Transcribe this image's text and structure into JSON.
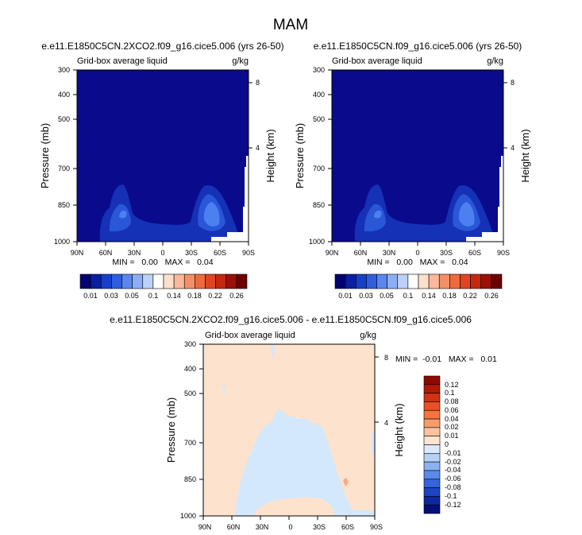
{
  "figure_title": "MAM",
  "colors": {
    "dark_navy": "#0a0a8c",
    "blue1": "#1531b5",
    "blue2": "#2a56d8",
    "blue3": "#4c7ff0",
    "pale_peach": "#fde2cd",
    "pale_blue": "#d4e8fb",
    "salmon": "#f7a98a"
  },
  "chart_data": [
    {
      "type": "heatmap",
      "title": "e.e11.E1850C5CN.2XCO2.f09_g16.cice5.006 (yrs 26-50)",
      "subtitle_left": "Grid-box average liquid",
      "subtitle_right": "g/kg",
      "ylabel": "Pressure (mb)",
      "ylabel_right": "Height (km)",
      "x_ticks": [
        "90N",
        "60N",
        "30N",
        "0",
        "30S",
        "60S",
        "90S"
      ],
      "y_ticks": [
        "300",
        "400",
        "500",
        "700",
        "850",
        "1000"
      ],
      "y_right_ticks": [
        "8",
        "4"
      ],
      "min_max_text": "MIN =   0.00   MAX =   0.04",
      "colorbar_labels": [
        "0.01",
        "0.03",
        "0.05",
        "0.1",
        "0.14",
        "0.18",
        "0.22",
        "0.26"
      ],
      "colorbar_colors": [
        "#020272",
        "#0a1fa0",
        "#1740c8",
        "#2f5ee0",
        "#5a86ee",
        "#8dadf4",
        "#bdd0f8",
        "#ffffff",
        "#fde0cc",
        "#f9b99a",
        "#f49066",
        "#ee6a3e",
        "#e04423",
        "#c42810",
        "#9c1006",
        "#6c0000"
      ]
    },
    {
      "type": "heatmap",
      "title": "e.e11.E1850C5CN.f09_g16.cice5.006 (yrs 26-50)",
      "subtitle_left": "Grid-box average liquid",
      "subtitle_right": "g/kg",
      "ylabel": "Pressure (mb)",
      "ylabel_right": "Height (km)",
      "x_ticks": [
        "90N",
        "60N",
        "30N",
        "0",
        "30S",
        "60S",
        "90S"
      ],
      "y_ticks": [
        "300",
        "400",
        "500",
        "700",
        "850",
        "1000"
      ],
      "y_right_ticks": [
        "8",
        "4"
      ],
      "min_max_text": "MIN =   0.00   MAX =   0.04",
      "colorbar_labels": [
        "0.01",
        "0.03",
        "0.05",
        "0.1",
        "0.14",
        "0.18",
        "0.22",
        "0.26"
      ],
      "colorbar_colors": [
        "#020272",
        "#0a1fa0",
        "#1740c8",
        "#2f5ee0",
        "#5a86ee",
        "#8dadf4",
        "#bdd0f8",
        "#ffffff",
        "#fde0cc",
        "#f9b99a",
        "#f49066",
        "#ee6a3e",
        "#e04423",
        "#c42810",
        "#9c1006",
        "#6c0000"
      ]
    },
    {
      "type": "heatmap",
      "title": "e.e11.E1850C5CN.2XCO2.f09_g16.cice5.006 - e.e11.E1850C5CN.f09_g16.cice5.006",
      "subtitle_left": "Grid-box average liquid",
      "subtitle_right": "g/kg",
      "ylabel": "Pressure (mb)",
      "ylabel_right": "Height (km)",
      "x_ticks": [
        "90N",
        "60N",
        "30N",
        "0",
        "30S",
        "60S",
        "90S"
      ],
      "y_ticks": [
        "300",
        "400",
        "500",
        "700",
        "850",
        "1000"
      ],
      "y_right_ticks": [
        "8",
        "4"
      ],
      "min_max_text": "MIN =  -0.01   MAX =   0.01",
      "colorbar_labels": [
        "0.12",
        "0.1",
        "0.08",
        "0.06",
        "0.04",
        "0.02",
        "0.01",
        "0",
        "-0.01",
        "-0.02",
        "-0.04",
        "-0.06",
        "-0.08",
        "-0.1",
        "-0.12"
      ],
      "colorbar_colors": [
        "#8a0a00",
        "#b01a05",
        "#d03212",
        "#ea5025",
        "#f37540",
        "#f69c6c",
        "#f9c3a0",
        "#fde5d2",
        "#dbeafb",
        "#b7d1f6",
        "#8bb2f0",
        "#5a8be8",
        "#3466da",
        "#1d44c2",
        "#0e28a0",
        "#040f78"
      ]
    }
  ]
}
